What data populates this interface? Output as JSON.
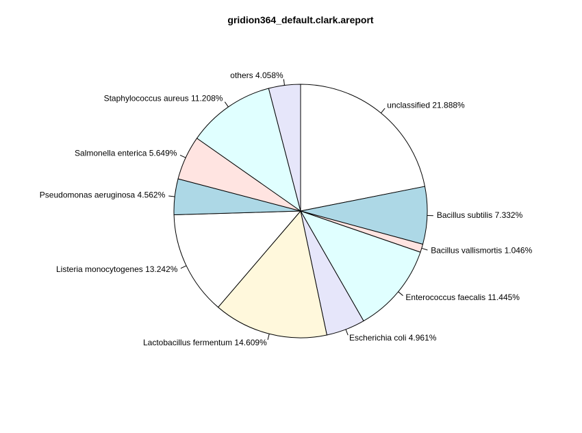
{
  "chart_data": {
    "type": "pie",
    "title": "gridion364_default.clark.areport",
    "slices": [
      {
        "label": "unclassified",
        "pct_label": "21.888%",
        "value": 21.888,
        "color": "#ffffff"
      },
      {
        "label": "Bacillus subtilis",
        "pct_label": "7.332%",
        "value": 7.332,
        "color": "#add8e6"
      },
      {
        "label": "Bacillus vallismortis",
        "pct_label": "1.046%",
        "value": 1.046,
        "color": "#ffe4e1"
      },
      {
        "label": "Enterococcus faecalis",
        "pct_label": "11.445%",
        "value": 11.445,
        "color": "#e0ffff"
      },
      {
        "label": "Escherichia coli",
        "pct_label": "4.961%",
        "value": 4.961,
        "color": "#e6e6fa"
      },
      {
        "label": "Lactobacillus fermentum",
        "pct_label": "14.609%",
        "value": 14.609,
        "color": "#fff8dc"
      },
      {
        "label": "Listeria monocytogenes",
        "pct_label": "13.242%",
        "value": 13.242,
        "color": "#ffffff"
      },
      {
        "label": "Pseudomonas aeruginosa",
        "pct_label": "4.562%",
        "value": 4.562,
        "color": "#add8e6"
      },
      {
        "label": "Salmonella enterica",
        "pct_label": "5.649%",
        "value": 5.649,
        "color": "#ffe4e1"
      },
      {
        "label": "Staphylococcus aureus",
        "pct_label": "11.208%",
        "value": 11.208,
        "color": "#e0ffff"
      },
      {
        "label": "others",
        "pct_label": "4.058%",
        "value": 4.058,
        "color": "#e6e6fa"
      }
    ],
    "start_position": "top",
    "direction": "clockwise"
  }
}
